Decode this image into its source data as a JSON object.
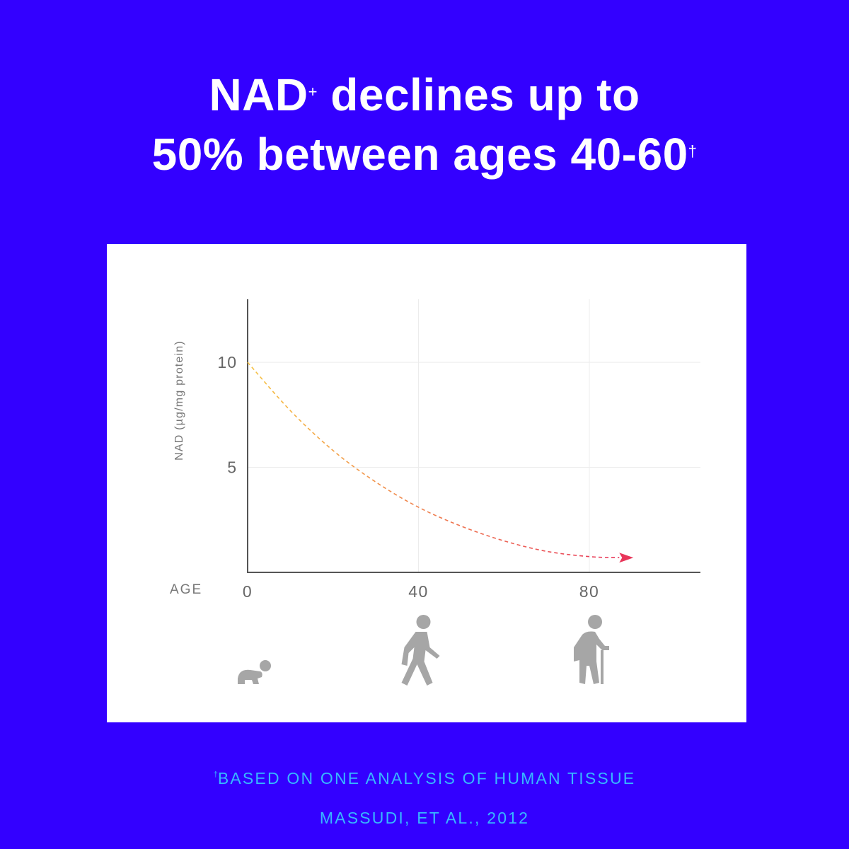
{
  "headline": {
    "line1_main": "NAD",
    "line1_sup": "+",
    "line1_rest": " declines up to",
    "line2_main": "50% between ages 40-60",
    "line2_sup": "†"
  },
  "chart_data": {
    "type": "line",
    "title": "",
    "xlabel": "AGE",
    "ylabel": "NAD (µg/mg protein)",
    "x_ticks": [
      "0",
      "40",
      "80"
    ],
    "y_ticks": [
      "10",
      "5"
    ],
    "xlim": [
      0,
      106
    ],
    "ylim": [
      0,
      13
    ],
    "grid": true,
    "line_style": "dashed",
    "line_gradient": [
      "#f6c342",
      "#e8365a"
    ],
    "end_marker": "arrow",
    "series": [
      {
        "x": [
          0,
          10,
          20,
          30,
          40,
          50,
          60,
          70,
          80,
          87
        ],
        "values": [
          10,
          7.7,
          5.8,
          4.3,
          3.1,
          2.2,
          1.5,
          1.0,
          0.75,
          0.7
        ]
      }
    ],
    "icons": [
      {
        "x": 0,
        "name": "baby-crawling-icon"
      },
      {
        "x": 40,
        "name": "person-walking-icon"
      },
      {
        "x": 80,
        "name": "elderly-person-cane-icon"
      }
    ],
    "icon_color": "#a6a6a6"
  },
  "footnotes": {
    "line1_sup": "†",
    "line1": "BASED ON ONE ANALYSIS OF HUMAN TISSUE",
    "line2": "MASSUDI, ET AL., 2012"
  }
}
